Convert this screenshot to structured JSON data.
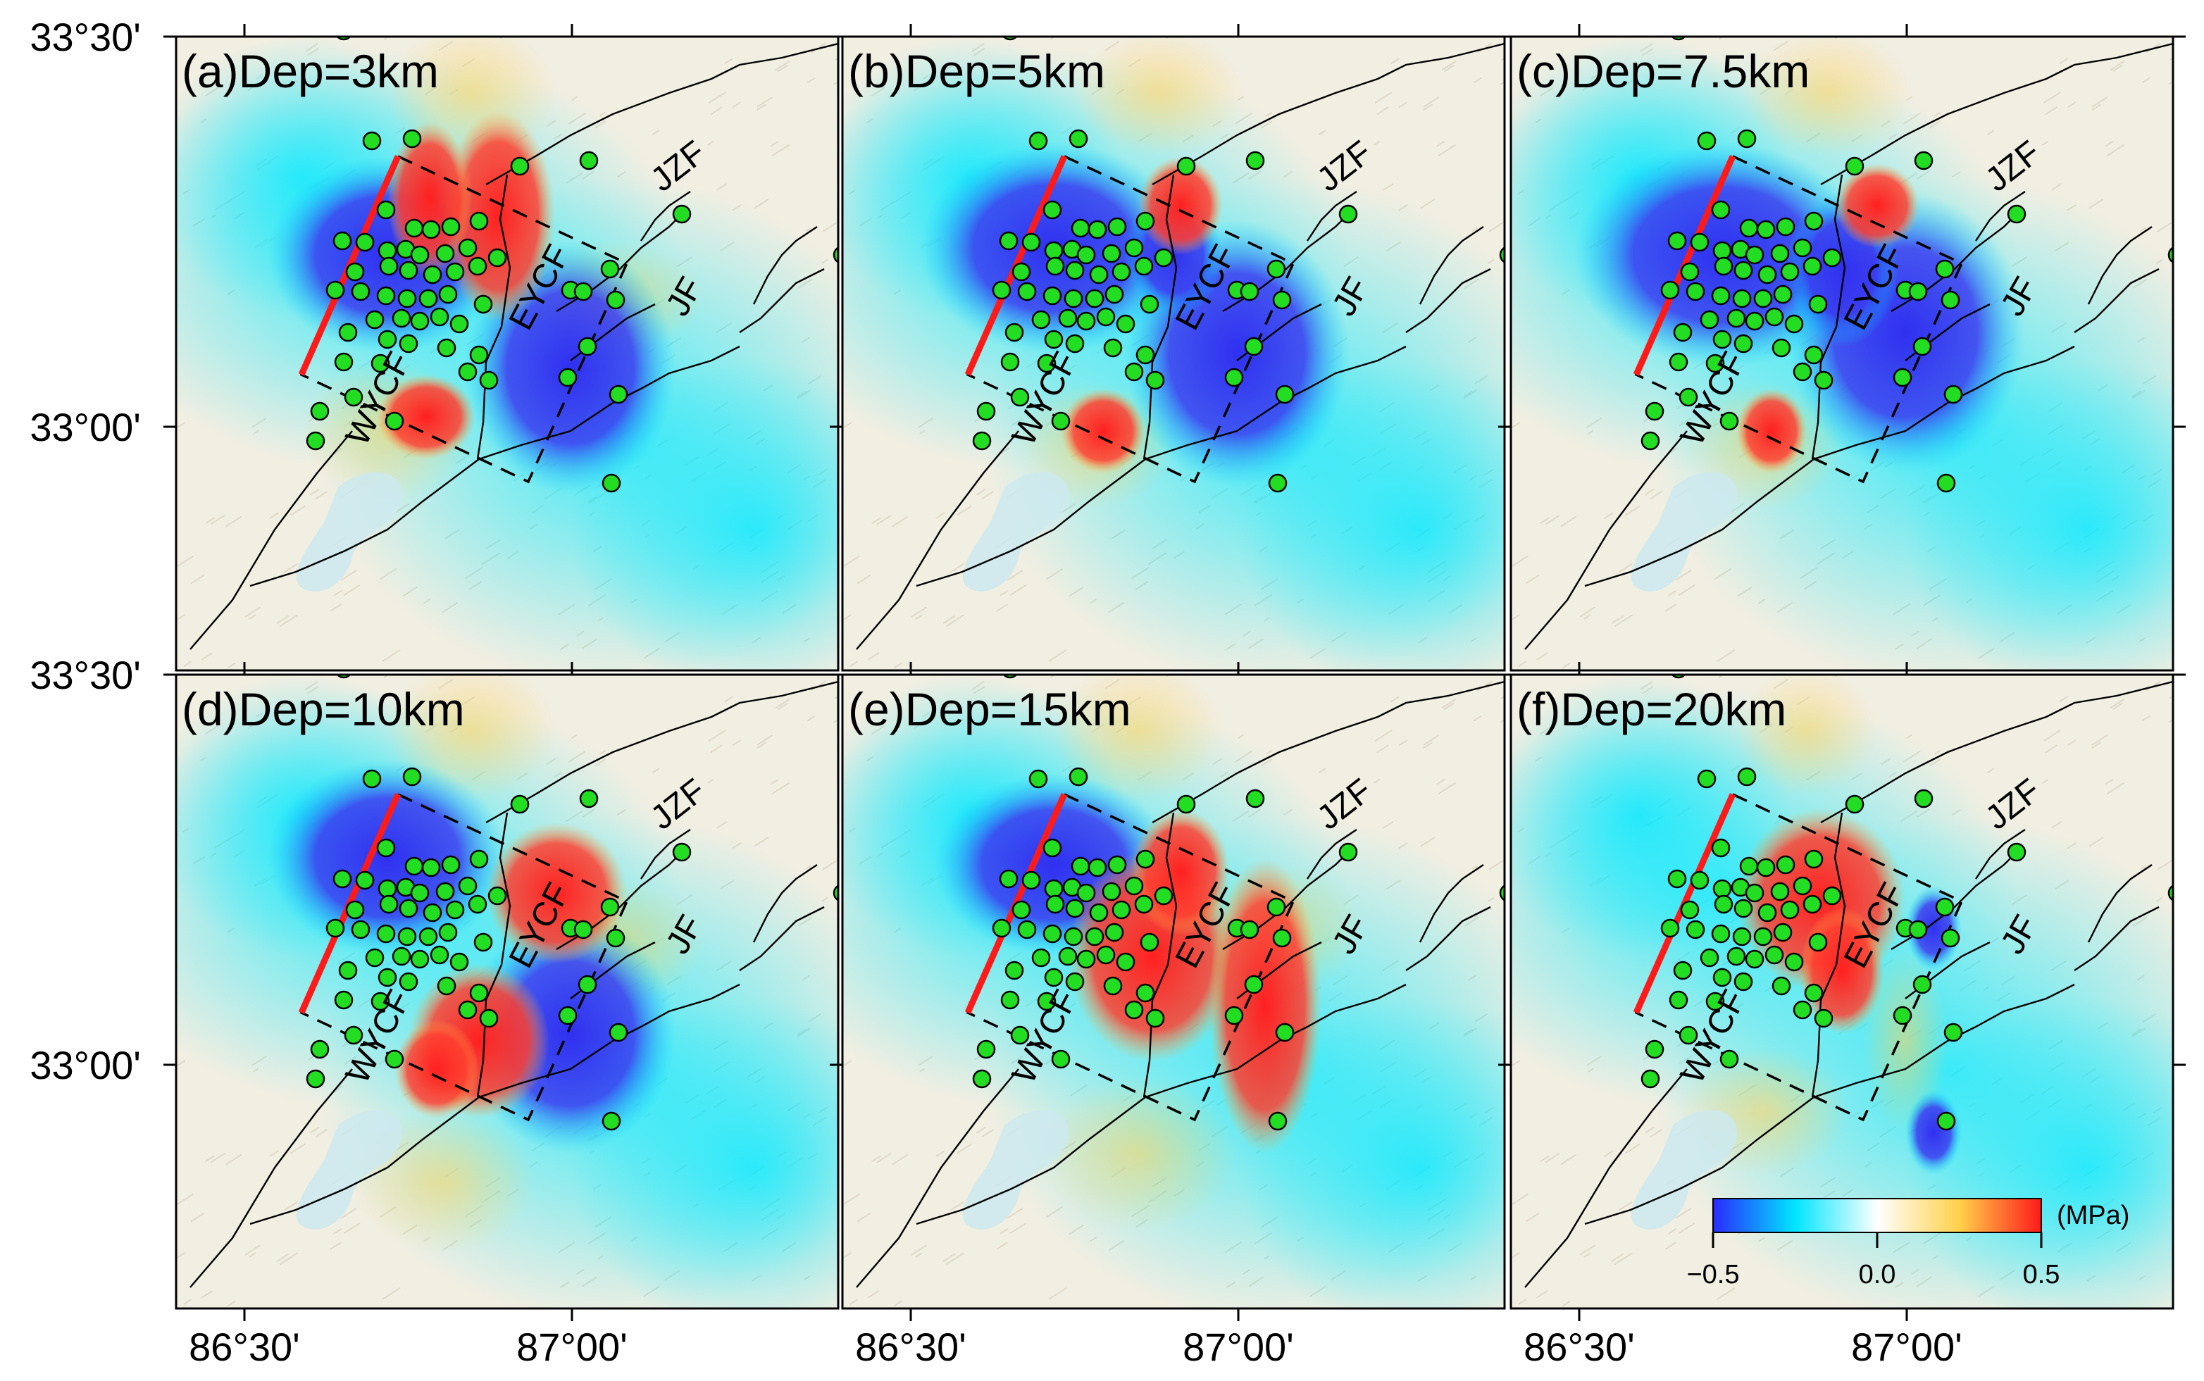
{
  "figure": {
    "panels": [
      {
        "id": "a",
        "title": "(a)Dep=3km",
        "depth_km": 3
      },
      {
        "id": "b",
        "title": "(b)Dep=5km",
        "depth_km": 5
      },
      {
        "id": "c",
        "title": "(c)Dep=7.5km",
        "depth_km": 7.5
      },
      {
        "id": "d",
        "title": "(d)Dep=10km",
        "depth_km": 10
      },
      {
        "id": "e",
        "title": "(e)Dep=15km",
        "depth_km": 15
      },
      {
        "id": "f",
        "title": "(f)Dep=20km",
        "depth_km": 20
      }
    ],
    "fault_labels": {
      "jzf": "JZF",
      "jf": "JF",
      "eycf": "EYCF",
      "wycf": "WYCF"
    },
    "lat_labels": {
      "top": "33°30'",
      "mid": "33°00'"
    },
    "lon_labels": {
      "west": "86°30'",
      "east": "87°00'"
    },
    "colorbar": {
      "unit": "(MPa)",
      "ticks": [
        "−0.5",
        "0.0",
        "0.5"
      ],
      "colors": [
        "#2a2aff",
        "#00e5ff",
        "#ffffff",
        "#ffd14a",
        "#ff1a1a"
      ]
    },
    "colors": {
      "positive": "#ff2a2a",
      "negative": "#3b3bf0",
      "aftershock": "#22dd22",
      "rupture": "#ff1a1a"
    }
  }
}
